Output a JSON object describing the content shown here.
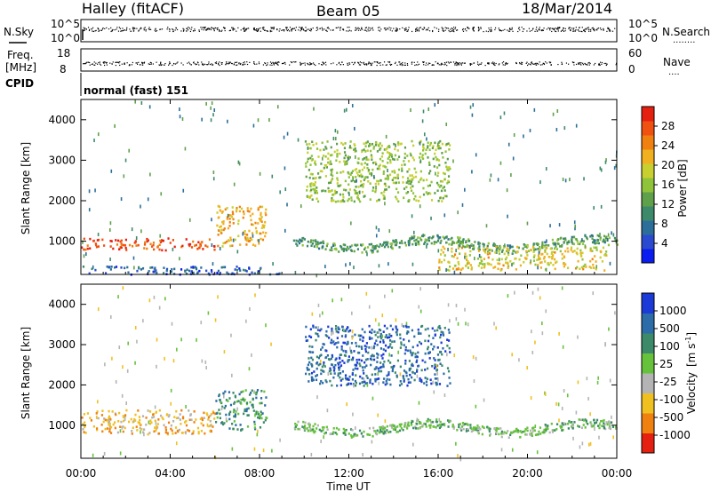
{
  "header": {
    "station": "Halley (fitACF)",
    "beam": "Beam 05",
    "date": "18/Mar/2014"
  },
  "panels": {
    "nsky": {
      "left_label": "N.Sky",
      "left_ticks": [
        "10^5",
        "10^0"
      ],
      "right_ticks": [
        "10^5",
        "10^0"
      ],
      "right_label": "N.Search",
      "right_dots": "........"
    },
    "freq": {
      "left_label_1": "Freq.",
      "left_label_2": "[MHz]",
      "left_ticks": [
        "18",
        "8"
      ],
      "right_ticks": [
        "60",
        "0"
      ],
      "right_label": "Nave",
      "right_dots": "...."
    },
    "cpid": {
      "label": "CPID",
      "value": "normal (fast) 151"
    }
  },
  "x_axis": {
    "label": "Time UT",
    "ticks": [
      "00:00",
      "04:00",
      "08:00",
      "12:00",
      "16:00",
      "20:00",
      "00:00"
    ]
  },
  "chart_data": [
    {
      "type": "heatmap",
      "title": "Power",
      "xlabel": "Time UT",
      "ylabel": "Slant Range [km]",
      "x_range_hours": [
        0,
        24
      ],
      "y_ticks": [
        1000,
        2000,
        3000,
        4000
      ],
      "ylim": [
        180,
        4500
      ],
      "colorbar": {
        "label": "Power [dB]",
        "ticks": [
          "4",
          "8",
          "12",
          "16",
          "20",
          "24",
          "28"
        ],
        "tick_values": [
          4,
          8,
          12,
          16,
          20,
          24,
          28
        ],
        "range": [
          0,
          32
        ],
        "colors": [
          "#0a1cf0",
          "#2a4bd0",
          "#2c6e9a",
          "#3c8a6a",
          "#5fa04a",
          "#8fc43a",
          "#c8d030",
          "#f0b020",
          "#f08010",
          "#f05010",
          "#e62010"
        ]
      },
      "features": [
        {
          "name": "strong backscatter band",
          "t_start": 0.0,
          "t_end": 6.0,
          "range_km": [
            800,
            1100
          ],
          "value": 28
        },
        {
          "name": "near-range echoes",
          "t_start": 0.0,
          "t_end": 9.0,
          "range_km": [
            200,
            400
          ],
          "value": 6
        },
        {
          "name": "patch 06-08 UT",
          "t_start": 6.0,
          "t_end": 8.3,
          "range_km": [
            900,
            1900
          ],
          "value": 22
        },
        {
          "name": "main band",
          "t_start": 9.5,
          "t_end": 24.0,
          "range_km": [
            700,
            1200
          ],
          "value": 12
        },
        {
          "name": "far range streaks",
          "t_start": 10.0,
          "t_end": 16.5,
          "range_km": [
            2000,
            3500
          ],
          "value": 16
        },
        {
          "name": "late near range",
          "t_start": 16.0,
          "t_end": 23.5,
          "range_km": [
            300,
            900
          ],
          "value": 20
        }
      ]
    },
    {
      "type": "heatmap",
      "title": "Velocity",
      "xlabel": "Time UT",
      "ylabel": "Slant Range [km]",
      "x_range_hours": [
        0,
        24
      ],
      "y_ticks": [
        1000,
        2000,
        3000,
        4000
      ],
      "ylim": [
        180,
        4500
      ],
      "colorbar": {
        "label": "Velocity",
        "unit": "[m s",
        "unit_sup": "-1",
        "unit_close": "]",
        "ticks": [
          "1000",
          "500",
          "100",
          "25",
          "-25",
          "-100",
          "-500",
          "-1000"
        ],
        "colors": [
          "#1c3ad8",
          "#2c6ca8",
          "#3c8a6a",
          "#66c23a",
          "#b4b4b4",
          "#f0c020",
          "#f08010",
          "#e62010"
        ]
      },
      "features": [
        {
          "name": "strong backscatter band",
          "t_start": 0.0,
          "t_end": 6.0,
          "range_km": [
            800,
            1400
          ],
          "value_bin": 2
        },
        {
          "name": "patch 06-08 UT",
          "t_start": 6.0,
          "t_end": 8.3,
          "range_km": [
            900,
            1900
          ],
          "value_bin": 5
        },
        {
          "name": "main band",
          "t_start": 9.5,
          "t_end": 24.0,
          "range_km": [
            700,
            1200
          ],
          "value_bin": 4
        },
        {
          "name": "far range streaks",
          "t_start": 10.0,
          "t_end": 16.5,
          "range_km": [
            2000,
            3500
          ],
          "value_bin": 6
        }
      ]
    }
  ]
}
